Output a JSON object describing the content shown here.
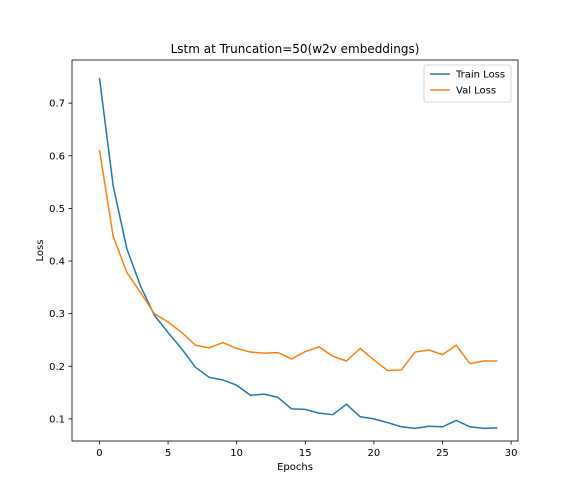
{
  "chart_data": {
    "type": "line",
    "title": "Lstm at Truncation=50(w2v embeddings)",
    "xlabel": "Epochs",
    "ylabel": "Loss",
    "xlim": [
      -2.0,
      30.5
    ],
    "ylim": [
      0.058,
      0.782
    ],
    "xticks": [
      0,
      5,
      10,
      15,
      20,
      25,
      30
    ],
    "yticks": [
      0.1,
      0.2,
      0.3,
      0.4,
      0.5,
      0.6,
      0.7
    ],
    "grid": false,
    "legend_position": "top-right",
    "x": [
      0,
      1,
      2,
      3,
      4,
      5,
      6,
      7,
      8,
      9,
      10,
      11,
      12,
      13,
      14,
      15,
      16,
      17,
      18,
      19,
      20,
      21,
      22,
      23,
      24,
      25,
      26,
      27,
      28,
      29
    ],
    "series": [
      {
        "name": "Train Loss",
        "color": "#1f77b4",
        "values": [
          0.748,
          0.543,
          0.423,
          0.352,
          0.297,
          0.264,
          0.233,
          0.198,
          0.179,
          0.174,
          0.164,
          0.145,
          0.147,
          0.141,
          0.119,
          0.118,
          0.111,
          0.108,
          0.128,
          0.104,
          0.1,
          0.093,
          0.085,
          0.082,
          0.086,
          0.085,
          0.097,
          0.085,
          0.082,
          0.083
        ]
      },
      {
        "name": "Val Loss",
        "color": "#ff7f0e",
        "values": [
          0.611,
          0.447,
          0.378,
          0.34,
          0.3,
          0.284,
          0.264,
          0.24,
          0.235,
          0.245,
          0.234,
          0.227,
          0.225,
          0.226,
          0.214,
          0.228,
          0.237,
          0.219,
          0.21,
          0.234,
          0.212,
          0.192,
          0.193,
          0.227,
          0.231,
          0.222,
          0.24,
          0.205,
          0.21,
          0.21
        ]
      }
    ]
  }
}
